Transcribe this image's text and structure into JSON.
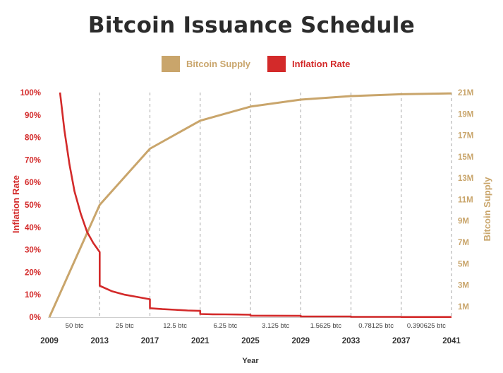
{
  "chart_data": {
    "type": "line",
    "title": "Bitcoin Issuance Schedule",
    "xlabel": "Year",
    "ylabel_left": "Inflation Rate",
    "ylabel_right": "Bitcoin Supply",
    "legend": [
      {
        "name": "Bitcoin Supply",
        "color": "#c9a56b"
      },
      {
        "name": "Inflation Rate",
        "color": "#d32a2a"
      }
    ],
    "legend_position": "top-center",
    "x_ticks": [
      "2009",
      "2013",
      "2017",
      "2021",
      "2025",
      "2029",
      "2033",
      "2037",
      "2041"
    ],
    "x_range": [
      2009,
      2041
    ],
    "y_left_ticks": [
      "0%",
      "10%",
      "20%",
      "30%",
      "40%",
      "50%",
      "60%",
      "70%",
      "80%",
      "90%",
      "100%"
    ],
    "y_left_range": [
      0,
      100
    ],
    "y_right_ticks": [
      "1M",
      "3M",
      "5M",
      "7M",
      "9M",
      "11M",
      "13M",
      "15M",
      "17M",
      "19M",
      "21M"
    ],
    "y_right_range": [
      0,
      21
    ],
    "grid": "vertical dashed lines at halving years",
    "era_labels": [
      "50 btc",
      "25 btc",
      "12.5 btc",
      "6.25 btc",
      "3.125 btc",
      "1.5625 btc",
      "0.78125 btc",
      "0.390625 btc"
    ],
    "series": [
      {
        "name": "Bitcoin Supply",
        "axis": "right",
        "x": [
          2009,
          2013,
          2017,
          2021,
          2025,
          2029,
          2033,
          2037,
          2041
        ],
        "values": [
          0,
          10.5,
          15.75,
          18.375,
          19.6875,
          20.34,
          20.67,
          20.84,
          20.92
        ]
      },
      {
        "name": "Inflation Rate",
        "axis": "left",
        "x": [
          2009.85,
          2010.2,
          2010.6,
          2011,
          2011.5,
          2012,
          2012.5,
          2013,
          2013,
          2014,
          2015,
          2016,
          2017,
          2017,
          2018,
          2019,
          2020,
          2021,
          2021,
          2022,
          2023,
          2024,
          2025,
          2025,
          2029,
          2029,
          2033,
          2033,
          2037,
          2037,
          2041
        ],
        "values": [
          100,
          83,
          68,
          56,
          46,
          38,
          33,
          29,
          14,
          11.5,
          10,
          9,
          8,
          4,
          3.6,
          3.3,
          3,
          2.8,
          1.4,
          1.3,
          1.25,
          1.2,
          1.1,
          0.7,
          0.6,
          0.3,
          0.3,
          0.15,
          0.15,
          0.08,
          0.08
        ]
      }
    ]
  }
}
